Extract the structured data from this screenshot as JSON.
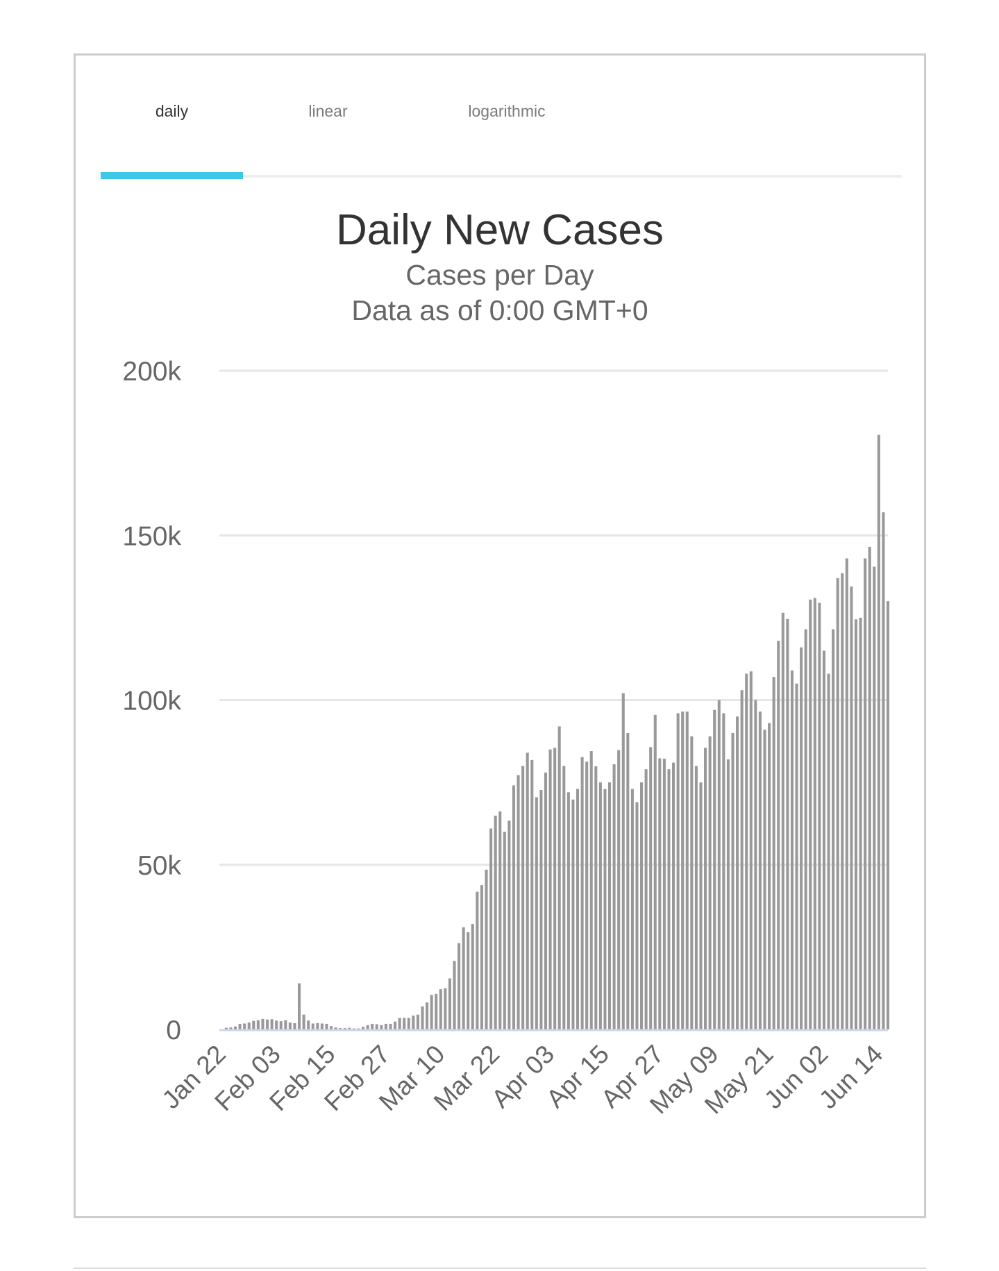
{
  "tabs": [
    {
      "label": "daily",
      "active": true
    },
    {
      "label": "linear",
      "active": false
    },
    {
      "label": "logarithmic",
      "active": false
    }
  ],
  "colors": {
    "accent": "#3cc8e6",
    "bar": "#999999",
    "grid": "#e6e6e6",
    "axis": "#ccd6eb"
  },
  "chart_data": {
    "type": "bar",
    "title": "Daily New Cases",
    "subtitle": "Cases per Day",
    "note": "Data as of 0:00 GMT+0",
    "xlabel": "",
    "ylabel": "",
    "ylim": [
      0,
      200000
    ],
    "yticks": [
      0,
      50000,
      100000,
      150000,
      200000
    ],
    "ytick_labels": [
      "0",
      "50k",
      "100k",
      "150k",
      "200k"
    ],
    "grid": true,
    "legend": "none",
    "x_start": "Jan 22",
    "xtick_labels": [
      "Jan 22",
      "Feb 03",
      "Feb 15",
      "Feb 27",
      "Mar 10",
      "Mar 22",
      "Apr 03",
      "Apr 15",
      "Apr 27",
      "May 09",
      "May 21",
      "Jun 02",
      "Jun 14"
    ],
    "values": [
      100,
      500,
      600,
      900,
      1700,
      1800,
      2100,
      2600,
      2800,
      3200,
      3000,
      3100,
      2700,
      2500,
      2800,
      2100,
      1900,
      14000,
      4500,
      2700,
      1800,
      1900,
      1800,
      1700,
      1000,
      600,
      400,
      400,
      500,
      300,
      300,
      800,
      1300,
      1700,
      1600,
      1300,
      1700,
      1700,
      2400,
      3500,
      3500,
      3500,
      4200,
      4500,
      7000,
      8200,
      10500,
      10800,
      12200,
      12500,
      15500,
      20800,
      26200,
      31000,
      29500,
      32000,
      41800,
      43800,
      48500,
      61000,
      64900,
      66200,
      60000,
      63400,
      74100,
      77200,
      80000,
      84000,
      81800,
      70500,
      72700,
      78000,
      85000,
      85500,
      92000,
      80000,
      72000,
      69800,
      73000,
      82700,
      81300,
      84500,
      79900,
      75000,
      73000,
      75000,
      80500,
      84800,
      102100,
      90000,
      73000,
      69000,
      75000,
      79000,
      85700,
      95500,
      82300,
      82200,
      79000,
      81000,
      96000,
      96500,
      96500,
      89000,
      80000,
      75000,
      85500,
      89000,
      97000,
      100000,
      96000,
      82000,
      90000,
      95000,
      103000,
      108000,
      108700,
      100000,
      96500,
      91000,
      93000,
      107000,
      118000,
      126500,
      124600,
      109000,
      105000,
      116000,
      121500,
      130500,
      131000,
      129500,
      115000,
      108000,
      121500,
      137000,
      138500,
      143000,
      134500,
      124500,
      125000,
      143000,
      146500,
      140500,
      180500,
      157000,
      130000
    ]
  }
}
